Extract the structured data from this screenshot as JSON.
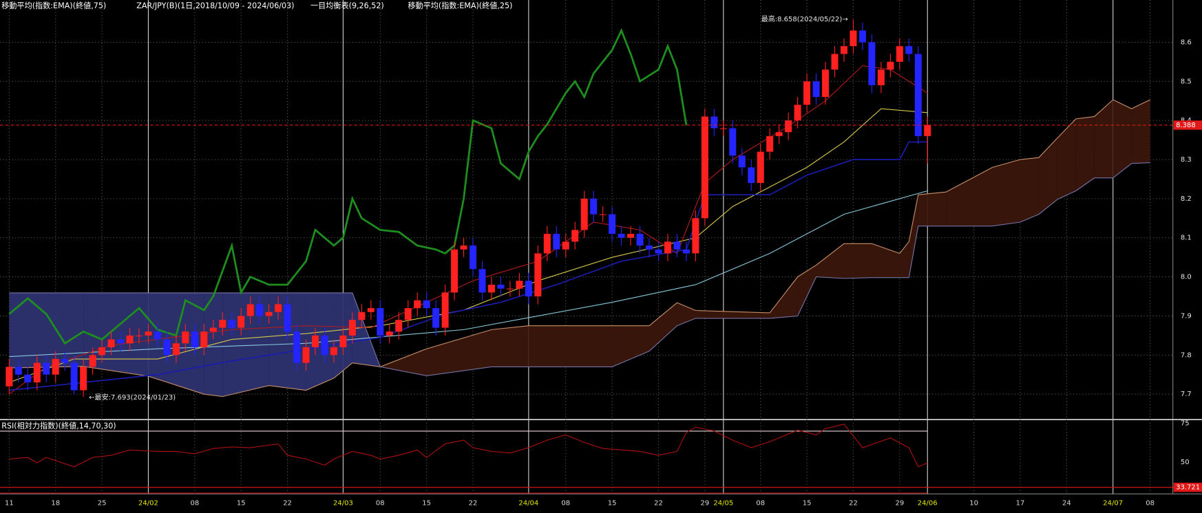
{
  "chart_data": [
    {
      "type": "candlestick",
      "titles": [
        "移動平均(指数:EMA)(終値,75)",
        "ZAR/JPY(B)(1日,2018/10/09 - 2024/06/03)",
        "一目均衡表(9,26,52)",
        "移動平均(指数:EMA)(終値,25)"
      ],
      "annotations": [
        "最高:8.658(2024/05/22)→",
        "←最安:7.693(2024/01/23)"
      ],
      "categories": [
        "11",
        null,
        null,
        null,
        null,
        "18",
        null,
        null,
        null,
        null,
        "25",
        null,
        null,
        null,
        null,
        "24/02",
        null,
        null,
        null,
        null,
        "08",
        null,
        null,
        null,
        null,
        "15",
        null,
        null,
        null,
        null,
        "22",
        null,
        null,
        null,
        null,
        null,
        "24/03",
        null,
        null,
        null,
        "08",
        null,
        null,
        null,
        null,
        "15",
        null,
        null,
        null,
        null,
        "22",
        null,
        null,
        null,
        null,
        null,
        "24/04",
        null,
        null,
        null,
        "08",
        null,
        null,
        null,
        null,
        "15",
        null,
        null,
        null,
        null,
        "22",
        null,
        null,
        null,
        null,
        "29",
        null,
        "24/05",
        null,
        null,
        null,
        "08",
        null,
        null,
        null,
        null,
        "15",
        null,
        null,
        null,
        null,
        "22",
        null,
        null,
        null,
        null,
        "29",
        null,
        null,
        "24/06",
        null,
        null,
        null,
        null,
        "10",
        null,
        null,
        null,
        null,
        "17",
        null,
        null,
        null,
        null,
        "24",
        null,
        null,
        null,
        null,
        "24/07",
        null,
        null,
        null,
        "08"
      ],
      "open": [
        7.72,
        7.77,
        7.75,
        7.73,
        7.78,
        7.75,
        7.79,
        7.78,
        7.71,
        7.77,
        7.8,
        7.82,
        7.84,
        7.83,
        7.85,
        7.85,
        7.86,
        7.84,
        7.8,
        7.83,
        7.86,
        7.82,
        7.86,
        7.87,
        7.89,
        7.87,
        7.9,
        7.93,
        7.9,
        7.91,
        7.93,
        7.86,
        7.78,
        7.82,
        7.85,
        7.8,
        7.82,
        7.85,
        7.89,
        7.91,
        7.92,
        7.85,
        7.86,
        7.89,
        7.92,
        7.94,
        7.92,
        7.87,
        7.96,
        8.07,
        8.08,
        8.02,
        7.96,
        7.98,
        7.97,
        7.97,
        7.99,
        7.95,
        8.06,
        8.11,
        8.07,
        8.09,
        8.12,
        8.2,
        8.16,
        8.16,
        8.11,
        8.1,
        8.11,
        8.08,
        8.07,
        8.06,
        8.09,
        8.07,
        8.06,
        8.15,
        8.41,
        8.38,
        8.38,
        8.31,
        8.28,
        8.24,
        8.32,
        8.36,
        8.37,
        8.4,
        8.44,
        8.5,
        8.46,
        8.53,
        8.57,
        8.59,
        8.63,
        8.6,
        8.49,
        8.53,
        8.55,
        8.59,
        8.57,
        8.36,
        null,
        null,
        null,
        null,
        null,
        null,
        null,
        null,
        null,
        null,
        null,
        null,
        null,
        null,
        null,
        null,
        null,
        null,
        null,
        null,
        null,
        null,
        null,
        null
      ],
      "high": [
        7.79,
        7.79,
        7.77,
        7.8,
        7.8,
        7.81,
        7.81,
        7.8,
        7.79,
        7.82,
        7.84,
        7.86,
        7.86,
        7.87,
        7.87,
        7.88,
        7.88,
        7.86,
        7.85,
        7.88,
        7.88,
        7.88,
        7.89,
        7.91,
        7.91,
        7.92,
        7.95,
        7.95,
        7.93,
        7.95,
        7.95,
        7.88,
        7.84,
        7.87,
        7.87,
        7.84,
        7.87,
        7.91,
        7.93,
        7.94,
        7.94,
        7.88,
        7.91,
        7.94,
        7.96,
        7.96,
        7.94,
        7.98,
        8.09,
        8.1,
        8.1,
        8.04,
        8.0,
        8.0,
        7.99,
        8.01,
        8.01,
        8.08,
        8.13,
        8.13,
        8.11,
        8.14,
        8.22,
        8.22,
        8.18,
        8.18,
        8.13,
        8.13,
        8.13,
        8.1,
        8.09,
        8.11,
        8.11,
        8.09,
        8.17,
        8.43,
        8.43,
        8.4,
        8.4,
        8.33,
        8.3,
        8.34,
        8.38,
        8.39,
        8.42,
        8.46,
        8.52,
        8.52,
        8.55,
        8.59,
        8.61,
        8.658,
        8.65,
        8.62,
        8.55,
        8.57,
        8.61,
        8.61,
        8.59,
        8.41,
        null,
        null,
        null,
        null,
        null,
        null,
        null,
        null,
        null,
        null,
        null,
        null,
        null,
        null,
        null,
        null,
        null,
        null,
        null,
        null,
        null,
        null,
        null,
        null
      ],
      "low": [
        7.7,
        7.73,
        7.71,
        7.71,
        7.73,
        7.73,
        7.76,
        7.7,
        7.693,
        7.75,
        7.78,
        7.8,
        7.81,
        7.81,
        7.83,
        7.83,
        7.82,
        7.78,
        7.78,
        7.81,
        7.8,
        7.8,
        7.84,
        7.85,
        7.85,
        7.85,
        7.88,
        7.88,
        7.88,
        7.89,
        7.84,
        7.76,
        7.76,
        7.8,
        7.78,
        7.78,
        7.8,
        7.83,
        7.87,
        7.89,
        7.83,
        7.83,
        7.84,
        7.87,
        7.9,
        7.9,
        7.85,
        7.85,
        7.94,
        8.05,
        8.0,
        7.94,
        7.94,
        7.95,
        7.95,
        7.95,
        7.93,
        7.93,
        8.04,
        8.05,
        8.05,
        8.07,
        8.1,
        8.14,
        8.14,
        8.09,
        8.08,
        8.08,
        8.06,
        8.05,
        8.04,
        8.04,
        8.05,
        8.04,
        8.04,
        8.13,
        8.36,
        8.36,
        8.29,
        8.26,
        8.22,
        8.22,
        8.3,
        8.34,
        8.35,
        8.38,
        8.42,
        8.44,
        8.44,
        8.51,
        8.55,
        8.57,
        8.58,
        8.47,
        8.47,
        8.51,
        8.53,
        8.55,
        8.34,
        8.29,
        null,
        null,
        null,
        null,
        null,
        null,
        null,
        null,
        null,
        null,
        null,
        null,
        null,
        null,
        null,
        null,
        null,
        null,
        null,
        null,
        null,
        null,
        null,
        null
      ],
      "close": [
        7.77,
        7.75,
        7.73,
        7.78,
        7.75,
        7.79,
        7.78,
        7.71,
        7.77,
        7.8,
        7.82,
        7.84,
        7.83,
        7.85,
        7.85,
        7.86,
        7.84,
        7.8,
        7.83,
        7.86,
        7.82,
        7.86,
        7.87,
        7.89,
        7.87,
        7.9,
        7.93,
        7.9,
        7.91,
        7.93,
        7.86,
        7.78,
        7.82,
        7.85,
        7.8,
        7.82,
        7.85,
        7.89,
        7.91,
        7.92,
        7.85,
        7.86,
        7.89,
        7.92,
        7.94,
        7.92,
        7.87,
        7.96,
        8.07,
        8.08,
        8.02,
        7.96,
        7.98,
        7.97,
        7.97,
        7.99,
        7.95,
        8.06,
        8.11,
        8.07,
        8.09,
        8.12,
        8.2,
        8.16,
        8.16,
        8.11,
        8.1,
        8.11,
        8.08,
        8.07,
        8.06,
        8.09,
        8.07,
        8.06,
        8.15,
        8.41,
        8.38,
        8.38,
        8.31,
        8.28,
        8.24,
        8.32,
        8.36,
        8.37,
        8.4,
        8.44,
        8.5,
        8.46,
        8.53,
        8.57,
        8.59,
        8.63,
        8.6,
        8.49,
        8.53,
        8.55,
        8.59,
        8.57,
        8.36,
        8.388,
        null,
        null,
        null,
        null,
        null,
        null,
        null,
        null,
        null,
        null,
        null,
        null,
        null,
        null,
        null,
        null,
        null,
        null,
        null,
        null,
        null,
        null,
        null,
        null
      ],
      "up_color": "#ff2020",
      "down_color": "#2424ff",
      "series": [
        {
          "color": "#86c8dc",
          "width": 1,
          "x": [
            0,
            16,
            32,
            49,
            65,
            74,
            82,
            90,
            99
          ],
          "values": [
            7.796,
            7.816,
            7.83,
            7.865,
            7.935,
            7.98,
            8.06,
            8.16,
            8.22
          ]
        },
        {
          "color": "#d8c84a",
          "width": 1,
          "x": [
            0,
            7,
            16,
            24,
            32,
            40,
            49,
            57,
            65,
            74,
            78,
            86,
            90,
            94,
            99
          ],
          "values": [
            7.73,
            7.79,
            7.79,
            7.84,
            7.855,
            7.875,
            7.915,
            7.99,
            8.05,
            8.1,
            8.18,
            8.28,
            8.345,
            8.43,
            8.42
          ]
        },
        {
          "color": "#b41a1a",
          "width": 1,
          "x": [
            0,
            4,
            11,
            24,
            32,
            39,
            45,
            50,
            57,
            63,
            68,
            72,
            75,
            78,
            84,
            88,
            92,
            95,
            99
          ],
          "values": [
            7.7,
            7.77,
            7.825,
            7.865,
            7.875,
            7.87,
            7.935,
            7.99,
            8.04,
            8.14,
            8.12,
            8.06,
            8.24,
            8.3,
            8.385,
            8.45,
            8.54,
            8.53,
            8.47
          ]
        },
        {
          "color": "#1c1cb0",
          "width": 1.5,
          "x": [
            0,
            16,
            24,
            32,
            40,
            47,
            53,
            59,
            66,
            73,
            75,
            82,
            86,
            91,
            96,
            97,
            99
          ],
          "values": [
            7.71,
            7.75,
            7.785,
            7.815,
            7.845,
            7.905,
            7.935,
            7.98,
            8.04,
            8.07,
            8.21,
            8.21,
            8.26,
            8.3,
            8.3,
            8.345,
            8.345
          ]
        },
        {
          "color": "#1e8e1e",
          "width": 2.5,
          "x": [
            0,
            2,
            4,
            6,
            8,
            10,
            12,
            14,
            16,
            18,
            19,
            21,
            22,
            24,
            25,
            26,
            28,
            30,
            32,
            33,
            35,
            36,
            37,
            38,
            40,
            42,
            44,
            46,
            47,
            48,
            49,
            50,
            52,
            53,
            55,
            56,
            57,
            58,
            60,
            61,
            62,
            63,
            65,
            66,
            67,
            68,
            70,
            71,
            72,
            73
          ],
          "values": [
            7.905,
            7.945,
            7.905,
            7.83,
            7.86,
            7.84,
            7.88,
            7.92,
            7.865,
            7.85,
            7.94,
            7.915,
            7.95,
            8.08,
            7.96,
            8.0,
            7.98,
            7.98,
            8.04,
            8.12,
            8.08,
            8.1,
            8.2,
            8.15,
            8.12,
            8.115,
            8.08,
            8.07,
            8.06,
            8.08,
            8.2,
            8.4,
            8.38,
            8.29,
            8.25,
            8.32,
            8.36,
            8.39,
            8.47,
            8.5,
            8.46,
            8.52,
            8.58,
            8.63,
            8.57,
            8.5,
            8.53,
            8.59,
            8.53,
            8.388
          ]
        }
      ],
      "cloud": {
        "x": [
          0,
          8,
          15,
          21,
          23,
          28,
          32,
          35,
          37,
          40,
          45,
          52,
          56,
          65,
          69,
          72,
          74,
          82,
          85,
          87,
          90,
          93,
          96,
          97,
          98,
          101,
          106,
          109,
          111,
          113,
          115,
          117,
          119,
          121,
          123
        ],
        "span_a": [
          7.767,
          7.771,
          7.746,
          7.7,
          7.694,
          7.722,
          7.71,
          7.741,
          7.78,
          7.77,
          7.816,
          7.865,
          7.875,
          7.875,
          7.875,
          7.934,
          7.914,
          7.908,
          8.0,
          8.03,
          8.085,
          8.085,
          8.06,
          8.09,
          8.21,
          8.217,
          8.28,
          8.3,
          8.305,
          8.355,
          8.404,
          8.41,
          8.453,
          8.43,
          8.453
        ],
        "span_b": [
          7.959,
          7.959,
          7.959,
          7.959,
          7.959,
          7.959,
          7.959,
          7.959,
          7.959,
          7.77,
          7.747,
          7.77,
          7.77,
          7.77,
          7.81,
          7.875,
          7.894,
          7.894,
          7.9,
          8.0,
          7.996,
          7.998,
          7.998,
          7.998,
          8.13,
          8.13,
          8.13,
          8.14,
          8.16,
          8.198,
          8.22,
          8.253,
          8.253,
          8.29,
          8.292
        ],
        "color_a": "#c8906a",
        "color_b": "#7474a8",
        "fill_a_above": "#3b160b",
        "fill_b_above": "#2d3170"
      },
      "ylim": [
        7.635,
        8.708
      ],
      "yticks": [
        7.7,
        7.8,
        7.9,
        {
          "value": 8,
          "label": "8.0"
        },
        8.1,
        8.2,
        8.3,
        8.4,
        8.5,
        8.6
      ],
      "grid": true,
      "current_price": 8.388,
      "current_color": "#e01818"
    },
    {
      "type": "line",
      "title": "RSI(相対力指数)(終値,14,70,30)",
      "x": [
        0,
        2,
        3,
        4,
        7,
        9,
        11,
        13,
        16,
        18,
        20,
        22,
        24,
        26,
        29,
        30,
        32,
        34,
        35,
        37,
        39,
        40,
        42,
        44,
        45,
        47,
        49,
        50,
        52,
        54,
        56,
        58,
        60,
        62,
        64,
        68,
        70,
        72,
        73,
        74,
        76,
        78,
        80,
        82,
        85,
        87,
        88,
        90,
        92,
        95,
        97,
        98,
        99
      ],
      "values": [
        52,
        53,
        49.5,
        53,
        47,
        53,
        54.4,
        57.8,
        56.9,
        56.9,
        55.4,
        58.8,
        59.8,
        59.3,
        61.8,
        54.4,
        52,
        48,
        52,
        56.9,
        54.4,
        52,
        54.4,
        57.8,
        52.9,
        61.8,
        64.2,
        59.3,
        56.9,
        55.9,
        59.3,
        64.2,
        67.6,
        62.7,
        58.8,
        56.9,
        54.4,
        56.9,
        69.2,
        72.5,
        70.1,
        64.2,
        59.3,
        63.2,
        70.6,
        67.6,
        71.6,
        74.5,
        59.3,
        65.6,
        59.3,
        47,
        49.5
      ],
      "color": "#b01010",
      "levels": [
        70,
        30
      ],
      "level_colors": [
        "#e8d8d8",
        "#c01010"
      ],
      "marker": 33.721,
      "marker_color": "#e01818",
      "ylim": [
        29.5,
        77.45
      ],
      "yticks": [
        75,
        50
      ]
    }
  ]
}
